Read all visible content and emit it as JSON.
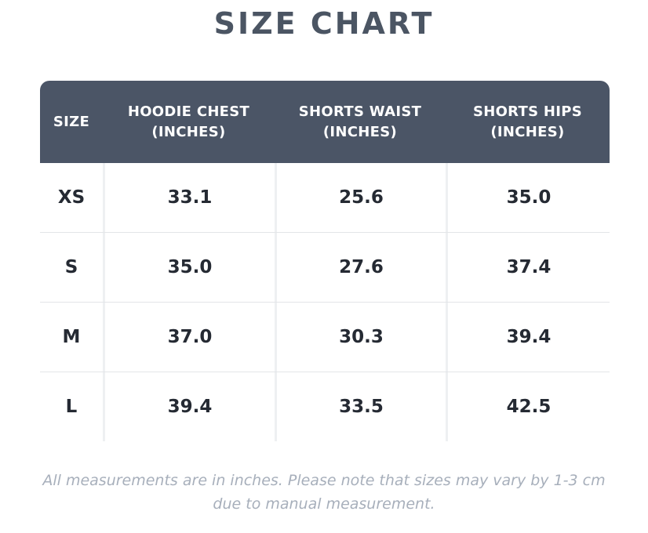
{
  "title": "SIZE CHART",
  "table": {
    "headers": [
      "SIZE",
      "HOODIE CHEST\n(INCHES)",
      "SHORTS WAIST\n(INCHES)",
      "SHORTS HIPS\n(INCHES)"
    ],
    "header_lines": [
      [
        "SIZE"
      ],
      [
        "HOODIE CHEST",
        "(INCHES)"
      ],
      [
        "SHORTS WAIST",
        "(INCHES)"
      ],
      [
        "SHORTS HIPS",
        "(INCHES)"
      ]
    ],
    "rows": [
      [
        "XS",
        "33.1",
        "25.6",
        "35.0"
      ],
      [
        "S",
        "35.0",
        "27.6",
        "37.4"
      ],
      [
        "M",
        "37.0",
        "30.3",
        "39.4"
      ],
      [
        "L",
        "39.4",
        "33.5",
        "42.5"
      ]
    ]
  },
  "note": "All measurements are in inches. Please note that sizes may vary by 1-3 cm due to manual measurement.",
  "colors": {
    "header_bg": "#4b5566",
    "title": "#4b5563",
    "note": "#a7afbb"
  }
}
